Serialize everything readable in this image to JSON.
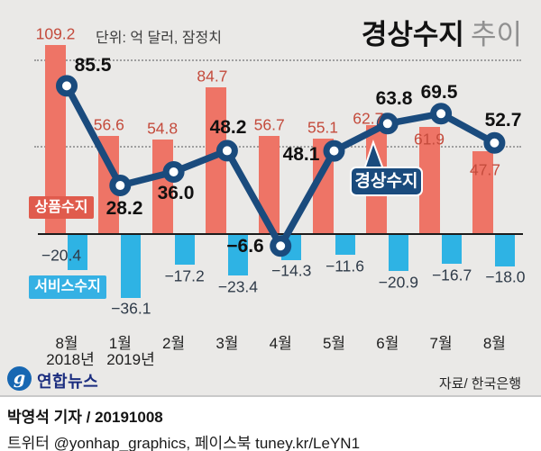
{
  "title": {
    "main": "경상수지",
    "sub": "추이"
  },
  "unit_note": "단위: 억 달러, 잠정치",
  "source": "자료/ 한국은행",
  "logo": {
    "glyph": "g",
    "text": "연합뉴스"
  },
  "footer": {
    "line1": "박영석 기자 /  20191008",
    "line2": "트위터 @yonhap_graphics, 페이스북 tuney.kr/LeYN1"
  },
  "legend": {
    "goods": "상품수지",
    "services": "서비스수지",
    "current": "경상수지"
  },
  "colors": {
    "background": "#eae9e7",
    "goods_bar": "#ee7466",
    "goods_label": "#c44b3c",
    "services_bar": "#2eb3e4",
    "services_label": "#2f3b49",
    "current_line": "#1a4b7d",
    "current_label": "#111111",
    "baseline": "#1c1c1c",
    "gridline": "#9f9f9f"
  },
  "chart_data": {
    "type": "bar",
    "subtype": "grouped bars with overlaid line",
    "title": "경상수지 추이",
    "unit": "억 달러, 잠정치",
    "categories": [
      "8월",
      "1월",
      "2월",
      "3월",
      "4월",
      "5월",
      "6월",
      "7월",
      "8월"
    ],
    "year_labels": [
      {
        "text": "2018년",
        "under_index": 0
      },
      {
        "text": "2019년",
        "under_index": 1
      }
    ],
    "series": [
      {
        "name": "상품수지",
        "type": "bar",
        "color": "#ee7466",
        "values": [
          109.2,
          56.6,
          54.8,
          84.7,
          56.7,
          55.1,
          62.7,
          61.9,
          47.7
        ]
      },
      {
        "name": "서비스수지",
        "type": "bar",
        "color": "#2eb3e4",
        "values": [
          -20.4,
          -36.1,
          -17.2,
          -23.4,
          -14.3,
          -11.6,
          -20.9,
          -16.7,
          -18.0
        ]
      },
      {
        "name": "경상수지",
        "type": "line",
        "color": "#1a4b7d",
        "values": [
          85.5,
          28.2,
          36.0,
          48.2,
          -6.6,
          48.1,
          63.8,
          69.5,
          52.7
        ]
      }
    ],
    "gridlines_at": [
      50,
      100
    ],
    "ylim": [
      -45,
      115
    ],
    "legend_position": "on-chart callouts",
    "grid": "two dotted horizontal reference lines"
  }
}
